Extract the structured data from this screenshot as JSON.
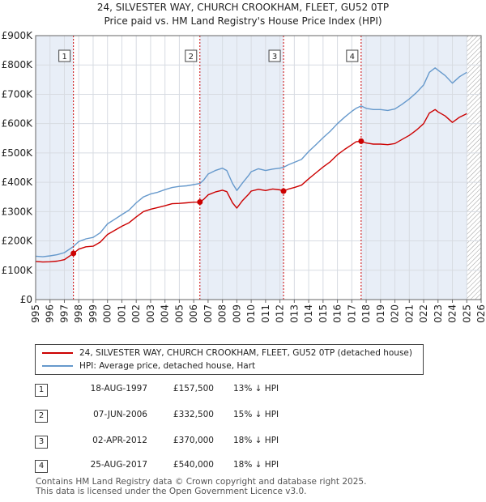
{
  "chart_data": {
    "type": "line",
    "title": "24, SILVESTER WAY, CHURCH CROOKHAM, FLEET, GU52 0TP",
    "subtitle": "Price paid vs. HM Land Registry's House Price Index (HPI)",
    "xlim": [
      1995,
      2026
    ],
    "ylim": [
      0,
      900000
    ],
    "x_ticks": [
      "1995",
      "1996",
      "1997",
      "1998",
      "1999",
      "2000",
      "2001",
      "2002",
      "2003",
      "2004",
      "2005",
      "2006",
      "2007",
      "2008",
      "2009",
      "2010",
      "2011",
      "2012",
      "2013",
      "2014",
      "2015",
      "2016",
      "2017",
      "2018",
      "2019",
      "2020",
      "2021",
      "2022",
      "2023",
      "2024",
      "2025",
      "2026"
    ],
    "y_ticks": [
      {
        "value": 0,
        "label": "£0"
      },
      {
        "value": 100000,
        "label": "£100K"
      },
      {
        "value": 200000,
        "label": "£200K"
      },
      {
        "value": 300000,
        "label": "£300K"
      },
      {
        "value": 400000,
        "label": "£400K"
      },
      {
        "value": 500000,
        "label": "£500K"
      },
      {
        "value": 600000,
        "label": "£600K"
      },
      {
        "value": 700000,
        "label": "£700K"
      },
      {
        "value": 800000,
        "label": "£800K"
      },
      {
        "value": 900000,
        "label": "£900K"
      }
    ],
    "shaded_ranges": [
      [
        1995,
        1997.63
      ],
      [
        2006.43,
        2012.25
      ],
      [
        2017.65,
        2025.0
      ]
    ],
    "hatched_from": 2025.0,
    "series": [
      {
        "name": "24, SILVESTER WAY, CHURCH CROOKHAM, FLEET, GU52 0TP (detached house)",
        "color": "#cc0000",
        "points": [
          [
            1995,
            130000
          ],
          [
            1995.5,
            128000
          ],
          [
            1996,
            129000
          ],
          [
            1996.5,
            131000
          ],
          [
            1997,
            136000
          ],
          [
            1997.63,
            157500
          ],
          [
            1998,
            172000
          ],
          [
            1998.5,
            180000
          ],
          [
            1999,
            182000
          ],
          [
            1999.5,
            196000
          ],
          [
            2000,
            222000
          ],
          [
            2000.5,
            236000
          ],
          [
            2001,
            250000
          ],
          [
            2001.5,
            262000
          ],
          [
            2002,
            282000
          ],
          [
            2002.5,
            300000
          ],
          [
            2003,
            308000
          ],
          [
            2003.5,
            314000
          ],
          [
            2004,
            320000
          ],
          [
            2004.5,
            327000
          ],
          [
            2005,
            328000
          ],
          [
            2005.5,
            330000
          ],
          [
            2006,
            332000
          ],
          [
            2006.43,
            332500
          ],
          [
            2006.7,
            342000
          ],
          [
            2007,
            357000
          ],
          [
            2007.5,
            367000
          ],
          [
            2008,
            373000
          ],
          [
            2008.3,
            368000
          ],
          [
            2008.7,
            330000
          ],
          [
            2009,
            312000
          ],
          [
            2009.4,
            338000
          ],
          [
            2009.8,
            358000
          ],
          [
            2010,
            370000
          ],
          [
            2010.5,
            376000
          ],
          [
            2011,
            372000
          ],
          [
            2011.5,
            377000
          ],
          [
            2012,
            374000
          ],
          [
            2012.25,
            370000
          ],
          [
            2012.6,
            377000
          ],
          [
            2013,
            382000
          ],
          [
            2013.5,
            390000
          ],
          [
            2014,
            412000
          ],
          [
            2014.5,
            432000
          ],
          [
            2015,
            452000
          ],
          [
            2015.5,
            470000
          ],
          [
            2016,
            494000
          ],
          [
            2016.5,
            512000
          ],
          [
            2017,
            528000
          ],
          [
            2017.3,
            538000
          ],
          [
            2017.65,
            540000
          ],
          [
            2018,
            534000
          ],
          [
            2018.5,
            530000
          ],
          [
            2019,
            530000
          ],
          [
            2019.5,
            528000
          ],
          [
            2020,
            532000
          ],
          [
            2020.5,
            546000
          ],
          [
            2021,
            560000
          ],
          [
            2021.5,
            578000
          ],
          [
            2022,
            600000
          ],
          [
            2022.4,
            636000
          ],
          [
            2022.8,
            648000
          ],
          [
            2023,
            640000
          ],
          [
            2023.5,
            626000
          ],
          [
            2024,
            604000
          ],
          [
            2024.5,
            622000
          ],
          [
            2025,
            634000
          ]
        ]
      },
      {
        "name": "HPI: Average price, detached house, Hart",
        "color": "#6699cc",
        "points": [
          [
            1995,
            148000
          ],
          [
            1995.5,
            146000
          ],
          [
            1996,
            149000
          ],
          [
            1996.5,
            153000
          ],
          [
            1997,
            160000
          ],
          [
            1997.63,
            181000
          ],
          [
            1998,
            198000
          ],
          [
            1998.5,
            207000
          ],
          [
            1999,
            212000
          ],
          [
            1999.5,
            228000
          ],
          [
            2000,
            258000
          ],
          [
            2000.5,
            274000
          ],
          [
            2001,
            290000
          ],
          [
            2001.5,
            305000
          ],
          [
            2002,
            330000
          ],
          [
            2002.5,
            350000
          ],
          [
            2003,
            360000
          ],
          [
            2003.5,
            366000
          ],
          [
            2004,
            375000
          ],
          [
            2004.5,
            382000
          ],
          [
            2005,
            386000
          ],
          [
            2005.5,
            388000
          ],
          [
            2006,
            392000
          ],
          [
            2006.43,
            396000
          ],
          [
            2006.7,
            408000
          ],
          [
            2007,
            428000
          ],
          [
            2007.5,
            440000
          ],
          [
            2008,
            448000
          ],
          [
            2008.3,
            440000
          ],
          [
            2008.7,
            396000
          ],
          [
            2009,
            372000
          ],
          [
            2009.4,
            398000
          ],
          [
            2009.8,
            422000
          ],
          [
            2010,
            436000
          ],
          [
            2010.5,
            446000
          ],
          [
            2011,
            440000
          ],
          [
            2011.5,
            445000
          ],
          [
            2012,
            448000
          ],
          [
            2012.25,
            451000
          ],
          [
            2012.6,
            460000
          ],
          [
            2013,
            468000
          ],
          [
            2013.5,
            478000
          ],
          [
            2014,
            505000
          ],
          [
            2014.5,
            528000
          ],
          [
            2015,
            552000
          ],
          [
            2015.5,
            574000
          ],
          [
            2016,
            600000
          ],
          [
            2016.5,
            622000
          ],
          [
            2017,
            642000
          ],
          [
            2017.3,
            652000
          ],
          [
            2017.65,
            660000
          ],
          [
            2018,
            652000
          ],
          [
            2018.5,
            648000
          ],
          [
            2019,
            648000
          ],
          [
            2019.5,
            645000
          ],
          [
            2020,
            650000
          ],
          [
            2020.5,
            666000
          ],
          [
            2021,
            684000
          ],
          [
            2021.5,
            706000
          ],
          [
            2022,
            732000
          ],
          [
            2022.4,
            775000
          ],
          [
            2022.8,
            790000
          ],
          [
            2023,
            782000
          ],
          [
            2023.5,
            764000
          ],
          [
            2024,
            738000
          ],
          [
            2024.5,
            760000
          ],
          [
            2025,
            775000
          ]
        ]
      }
    ],
    "sale_markers": [
      {
        "label": "1",
        "x": 1997.63,
        "y": 157500
      },
      {
        "label": "2",
        "x": 2006.43,
        "y": 332500
      },
      {
        "label": "3",
        "x": 2012.25,
        "y": 370000
      },
      {
        "label": "4",
        "x": 2017.65,
        "y": 540000
      }
    ]
  },
  "legend": {
    "items": [
      {
        "label": "24, SILVESTER WAY, CHURCH CROOKHAM, FLEET, GU52 0TP (detached house)",
        "color": "#cc0000"
      },
      {
        "label": "HPI: Average price, detached house, Hart",
        "color": "#6699cc"
      }
    ]
  },
  "sales": [
    {
      "num": "1",
      "date": "18-AUG-1997",
      "price": "£157,500",
      "hpi": "13% ↓ HPI"
    },
    {
      "num": "2",
      "date": "07-JUN-2006",
      "price": "£332,500",
      "hpi": "15% ↓ HPI"
    },
    {
      "num": "3",
      "date": "02-APR-2012",
      "price": "£370,000",
      "hpi": "18% ↓ HPI"
    },
    {
      "num": "4",
      "date": "25-AUG-2017",
      "price": "£540,000",
      "hpi": "18% ↓ HPI"
    }
  ],
  "footer": {
    "line1": "Contains HM Land Registry data © Crown copyright and database right 2025.",
    "line2": "This data is licensed under the Open Government Licence v3.0."
  }
}
